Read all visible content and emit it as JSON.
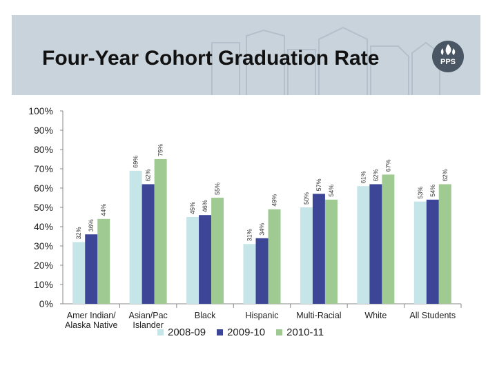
{
  "slide": {
    "title": "Four-Year Cohort Graduation Rate",
    "logo_text": "PPS",
    "header_color": "#c9d3db"
  },
  "chart_data": {
    "type": "bar",
    "title": "",
    "xlabel": "",
    "ylabel": "",
    "ylim": [
      0,
      100
    ],
    "yticks": [
      "0%",
      "10%",
      "20%",
      "30%",
      "40%",
      "50%",
      "60%",
      "70%",
      "80%",
      "90%",
      "100%"
    ],
    "categories": [
      [
        "Amer Indian/",
        "Alaska Native"
      ],
      [
        "Asian/Pac",
        "Islander"
      ],
      [
        "Black"
      ],
      [
        "Hispanic"
      ],
      [
        "Multi-Racial"
      ],
      [
        "White"
      ],
      [
        "All Students"
      ]
    ],
    "series": [
      {
        "name": "2008-09",
        "color": "#c6e5e8",
        "values": [
          32,
          69,
          45,
          31,
          50,
          61,
          53
        ],
        "labels": [
          "32%",
          "69%",
          "45%",
          "31%",
          "50%",
          "61%",
          "53%"
        ]
      },
      {
        "name": "2009-10",
        "color": "#3d4597",
        "values": [
          36,
          62,
          46,
          34,
          57,
          62,
          54
        ],
        "labels": [
          "36%",
          "62%",
          "46%",
          "34%",
          "57%",
          "62%",
          "54%"
        ]
      },
      {
        "name": "2010-11",
        "color": "#9fcb92",
        "values": [
          44,
          75,
          55,
          49,
          54,
          67,
          62
        ],
        "labels": [
          "44%",
          "75%",
          "55%",
          "49%",
          "54%",
          "67%",
          "62%"
        ]
      }
    ],
    "legend_position": "bottom",
    "grid": false
  }
}
